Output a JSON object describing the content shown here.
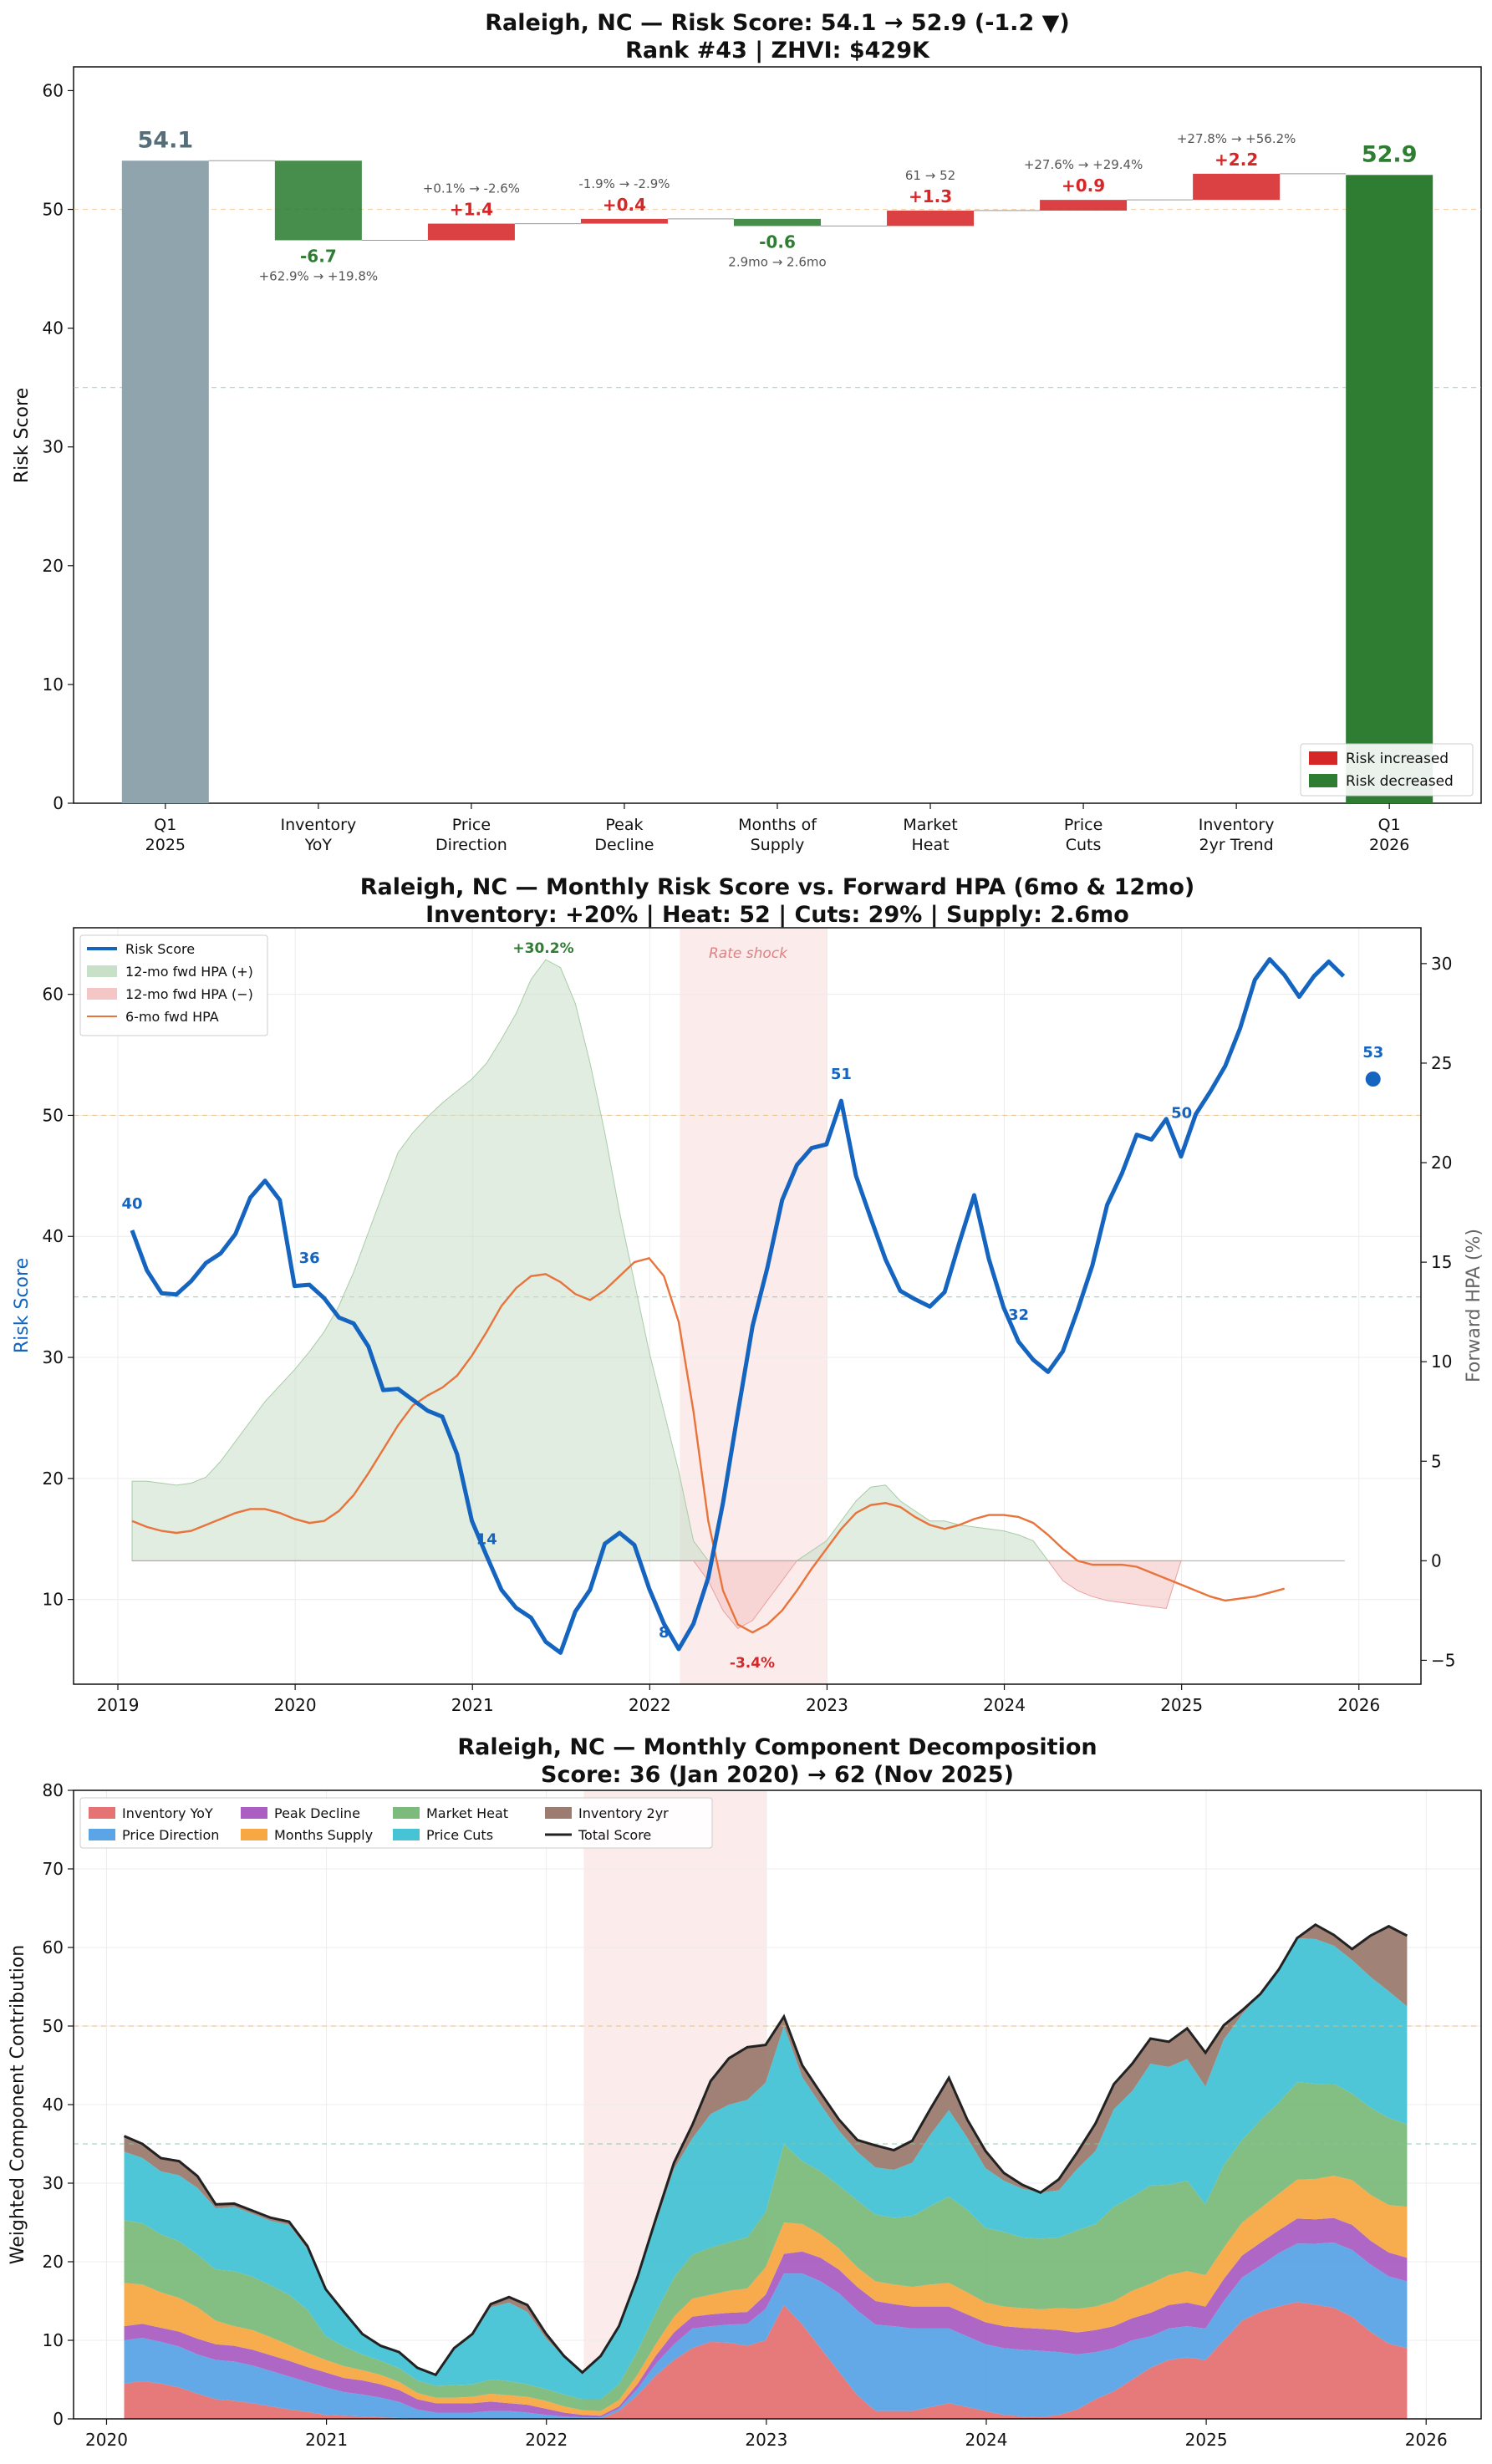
{
  "colors": {
    "increase": "#d62728",
    "decrease": "#2e7d32",
    "neutral": "#90a4ae",
    "risk_line": "#1565c0",
    "hpa12_pos": "#c8dfc8",
    "hpa12_neg": "#f5c6c6",
    "hpa6": "#e8743b",
    "shock": "#f8dada"
  },
  "charts": [
    {
      "id": "waterfall",
      "title_line1": "Raleigh, NC — Risk Score: 54.1 → 52.9 (-1.2 ▼)",
      "title_line2": "Rank #43  |  ZHVI: $429K",
      "ylabel": "Risk Score",
      "ylim": [
        0,
        62
      ],
      "yticks": [
        "0",
        "10",
        "20",
        "30",
        "40",
        "50",
        "60"
      ],
      "legend": [
        "Risk increased",
        "Risk decreased"
      ]
    },
    {
      "id": "timeseries",
      "title_line1": "Raleigh, NC — Monthly Risk Score vs. Forward HPA (6mo & 12mo)",
      "title_line2": "Inventory: +20%  |  Heat: 52  |  Cuts: 29%  |  Supply: 2.6mo",
      "ylabel_left": "Risk Score",
      "ylabel_right": "Forward HPA (%)",
      "xticks": [
        "2019",
        "2020",
        "2021",
        "2022",
        "2023",
        "2024",
        "2025",
        "2026"
      ],
      "yticks_left": [
        "10",
        "20",
        "30",
        "40",
        "50",
        "60"
      ],
      "yticks_right": [
        "−5",
        "0",
        "5",
        "10",
        "15",
        "20",
        "25",
        "30"
      ],
      "legend": [
        "Risk Score",
        "12-mo fwd HPA (+)",
        "12-mo fwd HPA (−)",
        "6-mo fwd HPA"
      ],
      "shock_label": "Rate shock",
      "peak_label": "+30.2%",
      "trough_label": "-3.4%",
      "point_labels": [
        "40",
        "36",
        "14",
        "8",
        "51",
        "32",
        "50",
        "53"
      ]
    },
    {
      "id": "decomposition",
      "title_line1": "Raleigh, NC — Monthly Component Decomposition",
      "title_line2": "Score: 36 (Jan 2020) → 62 (Nov 2025)",
      "ylabel": "Weighted Component Contribution",
      "xticks": [
        "2020",
        "2021",
        "2022",
        "2023",
        "2024",
        "2025",
        "2026"
      ],
      "yticks": [
        "0",
        "10",
        "20",
        "30",
        "40",
        "50",
        "60",
        "70",
        "80"
      ],
      "legend": [
        "Inventory YoY",
        "Price Direction",
        "Peak Decline",
        "Months Supply",
        "Market Heat",
        "Price Cuts",
        "Inventory 2yr",
        "Total Score"
      ]
    }
  ],
  "chart_data": [
    {
      "type": "bar",
      "subtype": "waterfall",
      "categories": [
        "Q1\n2025",
        "Inventory\nYoY",
        "Price\nDirection",
        "Peak\nDecline",
        "Months of\nSupply",
        "Market\nHeat",
        "Price\nCuts",
        "Inventory\n2yr Trend",
        "Q1\n2026"
      ],
      "start": 54.1,
      "end": 52.9,
      "start_label": "54.1",
      "end_label": "52.9",
      "deltas": [
        -6.7,
        1.4,
        0.4,
        -0.6,
        1.3,
        0.9,
        2.2
      ],
      "delta_labels": [
        "-6.7",
        "+1.4",
        "+0.4",
        "-0.6",
        "+1.3",
        "+0.9",
        "+2.2"
      ],
      "delta_notes": [
        "+62.9% → +19.8%",
        "+0.1% → -2.6%",
        "-1.9% → -2.9%",
        "2.9mo → 2.6mo",
        "61 → 52",
        "+27.6% → +29.4%",
        "+27.8% → +56.2%"
      ],
      "reference_lines": [
        50,
        35
      ],
      "ylim": [
        0,
        62
      ],
      "legend_position": "bottom-right"
    },
    {
      "type": "line",
      "x_start": 2019.08,
      "x_step_months": 1,
      "xlim": [
        2018.75,
        2026.35
      ],
      "ylim_left": [
        3,
        65.5
      ],
      "ylim_right": [
        -6.2,
        31.8
      ],
      "risk_score": [
        40.5,
        37.2,
        35.3,
        35.2,
        36.3,
        37.8,
        38.6,
        40.2,
        43.2,
        44.6,
        43.0,
        35.9,
        36.0,
        34.9,
        33.3,
        32.8,
        30.9,
        27.3,
        27.4,
        26.5,
        25.6,
        25.1,
        22.0,
        16.5,
        13.6,
        10.8,
        9.3,
        8.5,
        6.5,
        5.6,
        9.0,
        10.8,
        14.6,
        15.5,
        14.5,
        10.9,
        8.0,
        5.9,
        8.0,
        11.8,
        18.0,
        25.4,
        32.6,
        37.4,
        43.0,
        45.9,
        47.3,
        47.6,
        51.2,
        45.0,
        41.5,
        38.1,
        35.5,
        34.8,
        34.2,
        35.4,
        39.5,
        43.4,
        38.1,
        34.1,
        31.3,
        29.8,
        28.8,
        30.5,
        33.9,
        37.6,
        42.6,
        45.2,
        48.4,
        48.0,
        49.7,
        46.6,
        50.1,
        52.0,
        54.1,
        57.2,
        61.2,
        62.9,
        61.6,
        59.8,
        61.5,
        62.7,
        61.5
      ],
      "risk_score_final_point": {
        "x": 2026.08,
        "y": 53
      },
      "hpa12": [
        4.0,
        4.0,
        3.9,
        3.8,
        3.9,
        4.2,
        5.0,
        6.0,
        7.0,
        8.0,
        8.8,
        9.6,
        10.5,
        11.5,
        12.8,
        14.5,
        16.5,
        18.5,
        20.5,
        21.5,
        22.3,
        23.0,
        23.6,
        24.2,
        25.0,
        26.2,
        27.5,
        29.2,
        30.2,
        29.8,
        28.0,
        25.0,
        21.5,
        17.5,
        14.0,
        10.5,
        7.5,
        4.5,
        1.0,
        -1.0,
        -2.5,
        -3.4,
        -3.0,
        -2.0,
        -1.0,
        0.0,
        0.5,
        1.0,
        2.0,
        3.0,
        3.7,
        3.8,
        3.0,
        2.5,
        2.0,
        2.0,
        1.8,
        1.7,
        1.6,
        1.5,
        1.3,
        1.0,
        0.0,
        -1.0,
        -1.5,
        -1.8,
        -2.0,
        -2.1,
        -2.2,
        -2.3,
        -2.4,
        0.0
      ],
      "hpa6": [
        2.0,
        1.7,
        1.5,
        1.4,
        1.5,
        1.8,
        2.1,
        2.4,
        2.6,
        2.6,
        2.4,
        2.1,
        1.9,
        2.0,
        2.5,
        3.3,
        4.4,
        5.6,
        6.8,
        7.8,
        8.3,
        8.7,
        9.3,
        10.3,
        11.5,
        12.8,
        13.7,
        14.3,
        14.4,
        14.0,
        13.4,
        13.1,
        13.6,
        14.3,
        15.0,
        15.2,
        14.3,
        12.0,
        7.5,
        2.0,
        -1.5,
        -3.2,
        -3.6,
        -3.2,
        -2.5,
        -1.5,
        -0.4,
        0.6,
        1.6,
        2.4,
        2.8,
        2.9,
        2.7,
        2.2,
        1.8,
        1.6,
        1.8,
        2.1,
        2.3,
        2.3,
        2.2,
        1.9,
        1.3,
        0.6,
        0.0,
        -0.2,
        -0.2,
        -0.2,
        -0.3,
        -0.6,
        -0.9,
        -1.2,
        -1.5,
        -1.8,
        -2.0,
        -1.9,
        -1.8,
        -1.6,
        -1.4
      ],
      "shock_range": [
        2022.17,
        2023.0
      ],
      "reference_lines_left": [
        50,
        35
      ],
      "legend_position": "top-left"
    },
    {
      "type": "area",
      "stacked": true,
      "x_start": 2020.08,
      "x_step_months": 1,
      "xlim": [
        2019.85,
        2026.25
      ],
      "ylim": [
        0,
        80
      ],
      "shock_range": [
        2022.17,
        2023.0
      ],
      "reference_lines": [
        50,
        35
      ],
      "total_score": [
        36.0,
        35.0,
        33.2,
        32.8,
        30.9,
        27.3,
        27.4,
        26.5,
        25.6,
        25.1,
        22.0,
        16.5,
        13.6,
        10.8,
        9.3,
        8.5,
        6.5,
        5.6,
        9.0,
        10.8,
        14.6,
        15.5,
        14.5,
        10.9,
        8.0,
        5.9,
        8.0,
        11.8,
        18.0,
        25.4,
        32.6,
        37.4,
        43.0,
        45.9,
        47.3,
        47.6,
        51.2,
        45.0,
        41.5,
        38.1,
        35.5,
        34.8,
        34.2,
        35.4,
        39.5,
        43.4,
        38.1,
        34.1,
        31.3,
        29.8,
        28.8,
        30.5,
        33.9,
        37.6,
        42.6,
        45.2,
        48.4,
        48.0,
        49.7,
        46.6,
        50.1,
        52.0,
        54.1,
        57.2,
        61.2,
        62.9,
        61.6,
        59.8,
        61.5,
        62.7,
        61.5
      ],
      "series": [
        {
          "name": "Inventory YoY",
          "color": "#e57373",
          "values": [
            4.5,
            4.8,
            4.5,
            4.0,
            3.2,
            2.5,
            2.3,
            2.0,
            1.6,
            1.2,
            0.9,
            0.5,
            0.4,
            0.3,
            0.2,
            0.1,
            0.0,
            0.0,
            0.0,
            0.0,
            0.0,
            0.0,
            0.0,
            0.0,
            0.0,
            0.0,
            0.0,
            1.0,
            3.0,
            5.5,
            7.5,
            9.0,
            9.8,
            9.7,
            9.3,
            10.0,
            14.5,
            12.0,
            9.0,
            6.0,
            3.0,
            1.0,
            1.0,
            1.0,
            1.5,
            2.0,
            1.5,
            1.0,
            0.5,
            0.3,
            0.2,
            0.5,
            1.2,
            2.5,
            3.5,
            5.0,
            6.5,
            7.5,
            7.8,
            7.5,
            10.0,
            12.5,
            14.0,
            14.8,
            15.0,
            15.0,
            14.5,
            13.0,
            11.0,
            9.5,
            9.0
          ]
        },
        {
          "name": "Price Direction",
          "color": "#5ba4e6",
          "values": [
            5.5,
            5.5,
            5.3,
            5.2,
            5.0,
            5.0,
            5.0,
            4.8,
            4.5,
            4.2,
            3.8,
            3.5,
            3.0,
            2.8,
            2.5,
            2.0,
            1.2,
            0.8,
            0.8,
            0.8,
            1.0,
            1.0,
            0.8,
            0.5,
            0.3,
            0.2,
            0.2,
            0.3,
            0.8,
            1.5,
            2.0,
            2.5,
            2.0,
            2.3,
            2.8,
            4.0,
            4.0,
            6.5,
            8.5,
            10.0,
            10.8,
            11.0,
            10.8,
            10.5,
            10.0,
            9.5,
            9.0,
            8.5,
            8.5,
            8.5,
            8.5,
            8.0,
            7.0,
            6.0,
            5.5,
            5.0,
            4.0,
            4.0,
            4.0,
            4.0,
            5.0,
            5.5,
            6.0,
            7.0,
            7.5,
            8.0,
            8.5,
            8.5,
            8.5,
            8.5,
            8.5
          ]
        },
        {
          "name": "Peak Decline",
          "color": "#ab5fc3",
          "values": [
            1.8,
            1.8,
            1.8,
            1.9,
            2.0,
            2.0,
            2.0,
            2.0,
            2.0,
            2.0,
            1.9,
            1.9,
            1.8,
            1.8,
            1.7,
            1.5,
            1.3,
            1.2,
            1.2,
            1.2,
            1.2,
            1.0,
            1.0,
            0.8,
            0.5,
            0.3,
            0.2,
            0.3,
            0.6,
            1.0,
            1.5,
            1.5,
            1.5,
            1.5,
            1.5,
            1.8,
            2.5,
            2.8,
            3.0,
            3.0,
            3.0,
            3.0,
            2.8,
            2.8,
            2.8,
            2.8,
            2.8,
            2.8,
            2.8,
            2.8,
            2.8,
            2.8,
            2.8,
            2.8,
            2.8,
            2.8,
            3.0,
            3.0,
            3.0,
            2.8,
            2.8,
            2.8,
            3.0,
            3.0,
            3.2,
            3.2,
            3.2,
            3.2,
            3.0,
            3.0,
            3.0
          ]
        },
        {
          "name": "Months Supply",
          "color": "#f7a843",
          "values": [
            5.5,
            5.0,
            4.5,
            4.3,
            4.0,
            3.0,
            2.5,
            2.5,
            2.3,
            2.0,
            1.8,
            1.6,
            1.5,
            1.3,
            1.2,
            1.0,
            0.8,
            0.7,
            0.7,
            0.8,
            1.0,
            1.0,
            1.0,
            1.0,
            0.8,
            0.6,
            0.6,
            0.8,
            1.2,
            1.5,
            2.0,
            2.3,
            2.5,
            2.8,
            3.0,
            3.5,
            4.0,
            3.5,
            3.0,
            2.7,
            2.5,
            2.5,
            2.5,
            2.5,
            2.8,
            3.0,
            2.8,
            2.5,
            2.5,
            2.5,
            2.5,
            2.8,
            3.0,
            3.0,
            3.2,
            3.5,
            3.7,
            3.8,
            4.0,
            4.0,
            4.0,
            4.2,
            4.5,
            4.8,
            5.0,
            5.3,
            5.5,
            5.7,
            5.8,
            6.0,
            6.5
          ]
        },
        {
          "name": "Market Heat",
          "color": "#7cbb7c",
          "values": [
            8.0,
            7.8,
            7.4,
            7.2,
            6.7,
            6.5,
            7.0,
            6.8,
            6.6,
            6.4,
            5.5,
            3.0,
            2.5,
            2.0,
            1.8,
            1.7,
            1.6,
            1.5,
            1.6,
            1.6,
            1.8,
            1.8,
            1.6,
            1.5,
            1.5,
            1.4,
            1.5,
            2.0,
            3.0,
            4.0,
            5.0,
            5.6,
            6.0,
            6.2,
            6.5,
            7.0,
            10.0,
            8.0,
            8.0,
            8.0,
            8.5,
            8.5,
            8.5,
            9.0,
            10.0,
            11.0,
            10.5,
            9.5,
            9.5,
            9.0,
            9.0,
            9.0,
            10.0,
            10.5,
            12.0,
            12.0,
            12.5,
            11.5,
            11.5,
            9.0,
            10.5,
            10.5,
            11.5,
            12.0,
            12.5,
            12.5,
            12.0,
            11.0,
            11.0,
            11.0,
            10.5
          ]
        },
        {
          "name": "Price Cuts",
          "color": "#46c3d5",
          "values": [
            8.7,
            8.3,
            8.0,
            8.4,
            8.5,
            7.8,
            8.2,
            8.0,
            8.2,
            8.9,
            7.7,
            5.8,
            4.4,
            2.5,
            1.9,
            2.0,
            1.6,
            1.4,
            4.5,
            6.2,
            9.2,
            10.0,
            9.2,
            6.5,
            4.7,
            3.4,
            5.3,
            7.2,
            9.2,
            11.3,
            13.8,
            14.8,
            17.0,
            17.5,
            17.5,
            16.5,
            15.0,
            10.7,
            8.5,
            7.0,
            6.2,
            6.0,
            6.1,
            6.8,
            9.1,
            11.0,
            9.2,
            7.6,
            6.5,
            6.2,
            5.9,
            6.0,
            7.8,
            9.3,
            12.4,
            13.4,
            15.5,
            15.0,
            15.5,
            15.0,
            16.0,
            16.0,
            16.5,
            17.5,
            18.5,
            19.0,
            18.0,
            17.0,
            16.5,
            16.0,
            15.0
          ]
        },
        {
          "name": "Inventory 2yr",
          "color": "#9c7b70",
          "values": [
            2.0,
            1.8,
            1.7,
            1.8,
            1.5,
            0.5,
            0.4,
            0.4,
            0.4,
            0.4,
            0.4,
            0.2,
            0.0,
            0.1,
            0.0,
            0.0,
            0.0,
            0.0,
            0.2,
            0.2,
            0.4,
            0.7,
            0.9,
            0.6,
            0.2,
            0.0,
            0.2,
            0.2,
            0.2,
            0.6,
            0.8,
            1.7,
            4.2,
            5.9,
            6.7,
            4.8,
            1.2,
            1.5,
            1.5,
            1.4,
            1.5,
            2.8,
            2.5,
            2.8,
            3.3,
            4.1,
            2.3,
            2.2,
            1.0,
            0.5,
            0.0,
            1.4,
            2.1,
            3.5,
            3.2,
            3.5,
            3.2,
            3.2,
            3.9,
            4.3,
            1.8,
            0.5,
            -1.4,
            -1.9,
            0.0,
            1.9,
            1.4,
            1.4,
            5.2,
            8.2,
            9.0
          ]
        }
      ],
      "legend_position": "top-left"
    }
  ]
}
